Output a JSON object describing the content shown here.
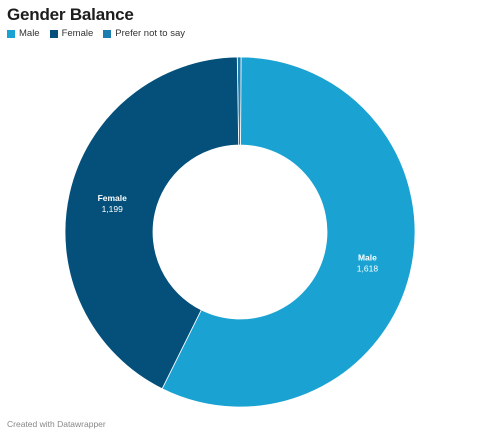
{
  "chart_data": {
    "type": "pie",
    "title": "Gender Balance",
    "donut": true,
    "categories": [
      "Male",
      "Female",
      "Prefer not to say"
    ],
    "values": [
      1618,
      1199,
      10
    ],
    "value_labels": [
      "1,618",
      "1,199",
      ""
    ],
    "colors": [
      "#1aa3d2",
      "#04507a",
      "#1b7eaf"
    ],
    "legend_position": "top-left"
  },
  "footer": "Created with Datawrapper"
}
